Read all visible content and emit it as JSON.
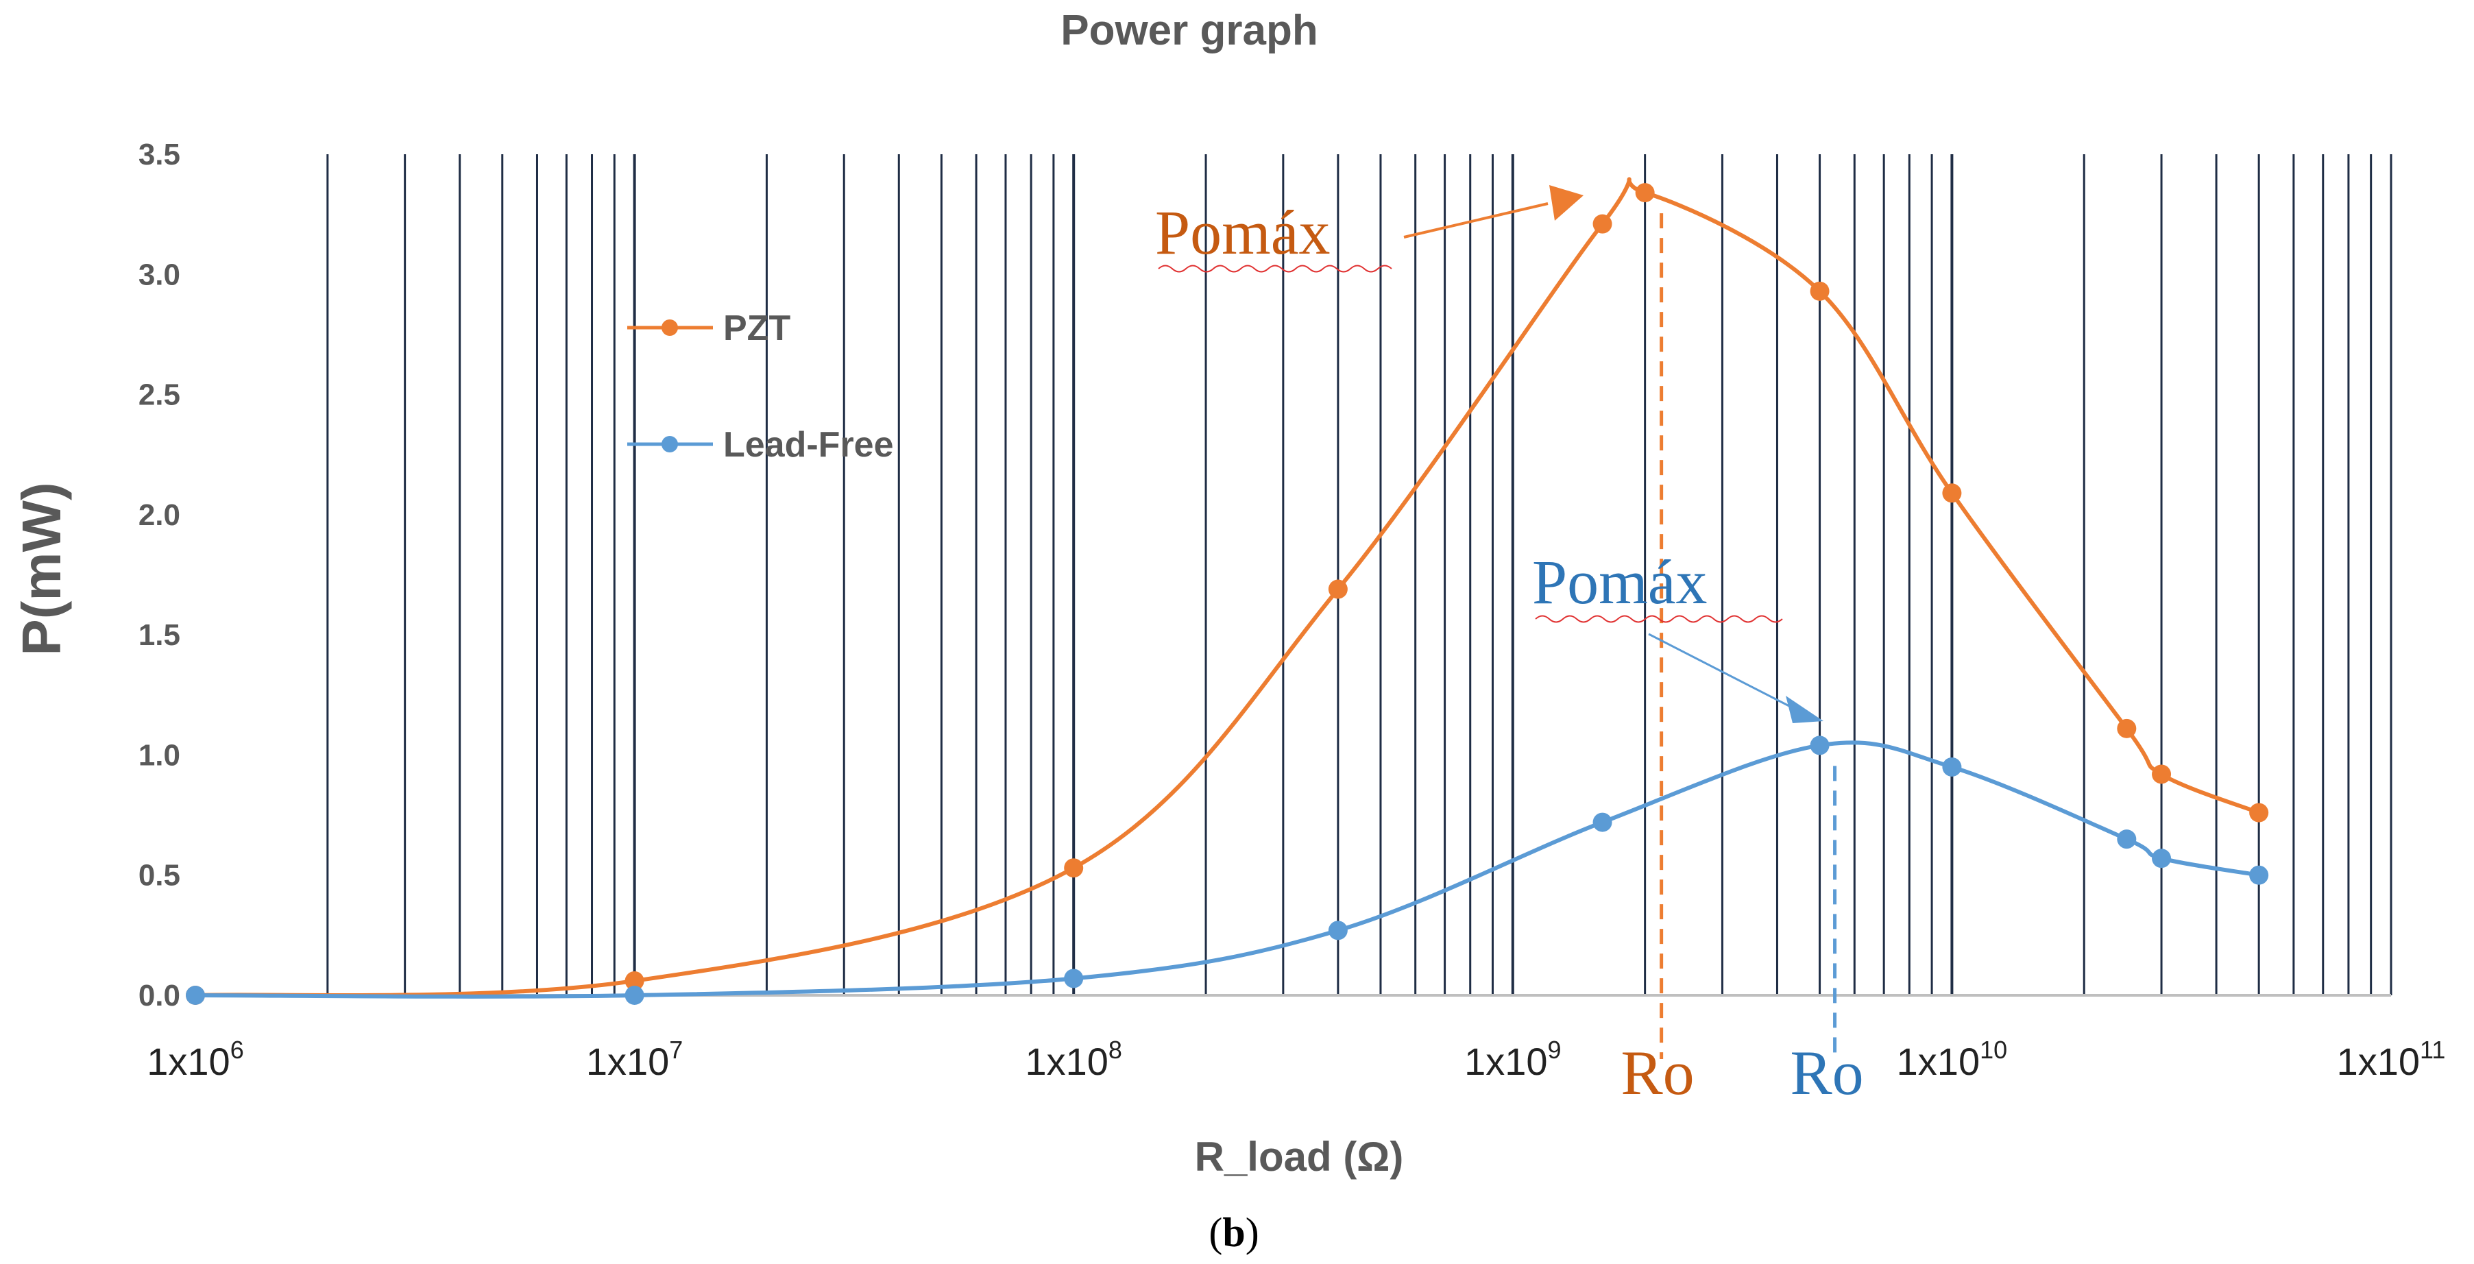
{
  "chart_data": {
    "type": "line",
    "title": "Power graph",
    "xlabel": "R_load (Ω)",
    "ylabel": "P(mW)",
    "x_scale": "log",
    "xlim": [
      1000000,
      100000000000
    ],
    "ylim": [
      0,
      3.5
    ],
    "y_ticks": [
      "0.0",
      "0.5",
      "1.0",
      "1.5",
      "2.0",
      "2.5",
      "3.0",
      "3.5"
    ],
    "x_ticks": [
      {
        "base": "1x10",
        "exp": "6",
        "value": 1000000
      },
      {
        "base": "1x10",
        "exp": "7",
        "value": 10000000
      },
      {
        "base": "1x10",
        "exp": "8",
        "value": 100000000
      },
      {
        "base": "1x10",
        "exp": "9",
        "value": 1000000000
      },
      {
        "base": "1x10",
        "exp": "10",
        "value": 10000000000
      },
      {
        "base": "1x10",
        "exp": "11",
        "value": 100000000000
      }
    ],
    "grid": "vertical-log",
    "legend_position": "left",
    "series": [
      {
        "name": "PZT",
        "color": "#ED7D31",
        "x": [
          1000000,
          10000000,
          100000000,
          400000000,
          1600000000,
          2000000000,
          5000000000,
          10000000000,
          25000000000,
          30000000000,
          50000000000
        ],
        "y": [
          0.0,
          0.06,
          0.53,
          1.69,
          3.21,
          3.34,
          2.93,
          2.09,
          1.11,
          0.92,
          0.76
        ]
      },
      {
        "name": "Lead-Free",
        "color": "#5B9BD5",
        "x": [
          1000000,
          10000000,
          100000000,
          400000000,
          1600000000,
          5000000000,
          10000000000,
          25000000000,
          30000000000,
          50000000000
        ],
        "y": [
          0.0,
          0.0,
          0.07,
          0.27,
          0.72,
          1.04,
          0.95,
          0.65,
          0.57,
          0.5
        ]
      }
    ],
    "annotations": [
      {
        "text": "Pomáx",
        "color": "#C55A11",
        "series": "PZT",
        "points_to_x": 2000000000,
        "points_to_y": 3.34
      },
      {
        "text": "Ro",
        "color": "#C55A11",
        "series": "PZT",
        "marks_x": 2000000000
      },
      {
        "text": "Pomáx",
        "color": "#2E75B6",
        "series": "Lead-Free",
        "points_to_x": 5000000000,
        "points_to_y": 1.04
      },
      {
        "text": "Ro",
        "color": "#2E75B6",
        "series": "Lead-Free",
        "marks_x": 5000000000
      }
    ]
  },
  "caption": {
    "open": "(",
    "letter": "b",
    "close": ")"
  },
  "colors": {
    "axis_text": "#595959",
    "grid": "#1F2D45",
    "axis_line": "#BFBFBF",
    "squiggle": "#E03030"
  }
}
